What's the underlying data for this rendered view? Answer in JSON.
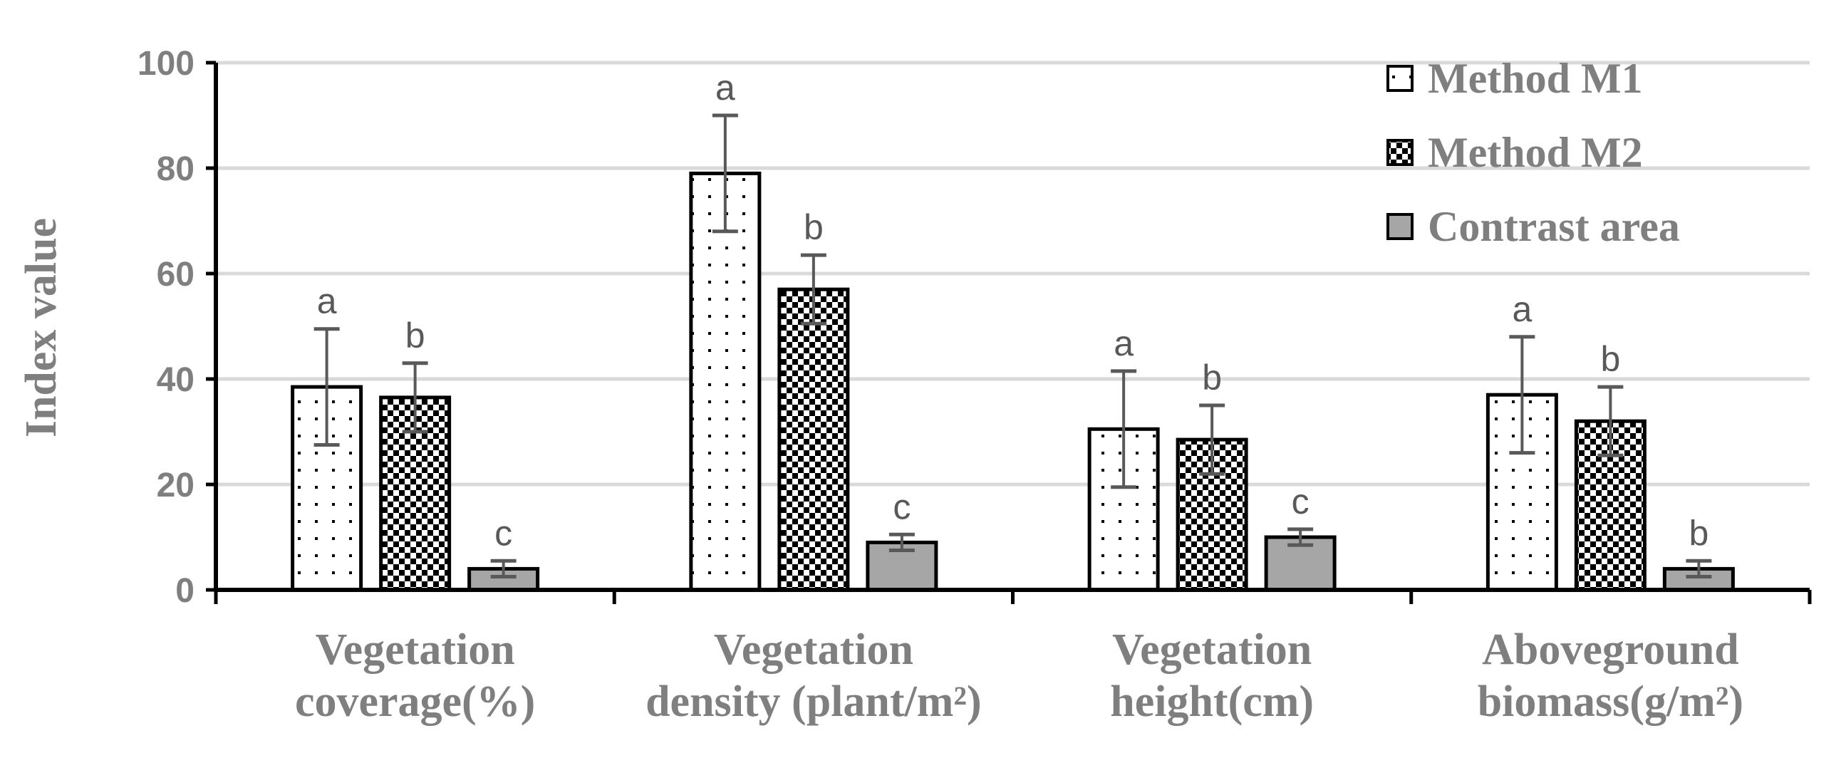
{
  "chart_data": {
    "type": "bar",
    "title": "",
    "xlabel": "",
    "ylabel": "Index value",
    "ylim": [
      0,
      100
    ],
    "yticks": [
      0,
      20,
      40,
      60,
      80,
      100
    ],
    "grid": true,
    "legend_position": "top-right",
    "categories": [
      [
        "Vegetation",
        "coverage(%)"
      ],
      [
        "Vegetation",
        "density (plant/m²)"
      ],
      [
        "Vegetation",
        "height(cm)"
      ],
      [
        "Aboveground",
        "biomass(g/m²)"
      ]
    ],
    "series": [
      {
        "name": "Method M1",
        "pattern": "sparse-dots",
        "values": [
          38.5,
          79,
          30.5,
          37
        ],
        "errors": [
          11,
          11,
          11,
          11
        ],
        "letters": [
          "a",
          "a",
          "a",
          "a"
        ]
      },
      {
        "name": "Method M2",
        "pattern": "dense-checker",
        "values": [
          36.5,
          57,
          28.5,
          32
        ],
        "errors": [
          6.5,
          6.5,
          6.5,
          6.5
        ],
        "letters": [
          "b",
          "b",
          "b",
          "b"
        ]
      },
      {
        "name": "Contrast area",
        "pattern": "solid-gray",
        "values": [
          4,
          9,
          10,
          4
        ],
        "errors": [
          1.5,
          1.5,
          1.5,
          1.5
        ],
        "letters": [
          "c",
          "c",
          "c",
          "b"
        ]
      }
    ],
    "colors": {
      "axis": "#000000",
      "grid": "#d9d9d9",
      "text": "#7f7f7f",
      "error_bar": "#595959",
      "contrast_fill": "#a6a6a6",
      "pattern_dot": "#000000"
    }
  }
}
